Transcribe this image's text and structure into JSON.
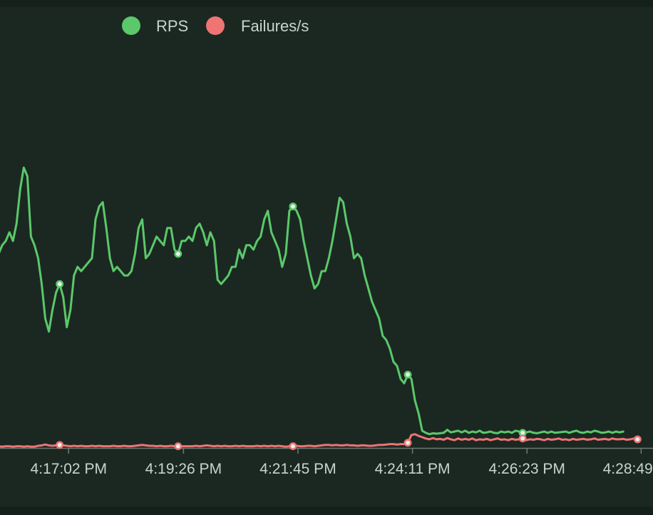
{
  "chart_data": {
    "type": "line",
    "legend": [
      {
        "name": "RPS",
        "color": "#5bc86a"
      },
      {
        "name": "Failures/s",
        "color": "#ef7474"
      }
    ],
    "x_tick_labels": [
      "4:17:02 PM",
      "4:19:26 PM",
      "4:21:45 PM",
      "4:24:11 PM",
      "4:26:23 PM",
      "4:28:49 PM"
    ],
    "axis_color": "#6f7a74",
    "series": [
      {
        "name": "RPS",
        "color": "#5bc86a",
        "marker_indices": [
          19,
          52,
          84,
          116,
          148,
          180
        ],
        "values": [
          40,
          42,
          45,
          47,
          48,
          50,
          48,
          52,
          60,
          65,
          63,
          49,
          47,
          44,
          38,
          30,
          27,
          32,
          36,
          38,
          35,
          28,
          32,
          40,
          42,
          41,
          42,
          43,
          44,
          53,
          56,
          57,
          51,
          44,
          41,
          42,
          41,
          40,
          40,
          41,
          45,
          51,
          53,
          44,
          45,
          47,
          49,
          48,
          47,
          51,
          51,
          46,
          45,
          48,
          48,
          49,
          48,
          51,
          52,
          50,
          47,
          50,
          48,
          39,
          38,
          39,
          40,
          42,
          42,
          46,
          44,
          47,
          47,
          46,
          48,
          49,
          53,
          55,
          50,
          48,
          46,
          42,
          45,
          55,
          56,
          55,
          53,
          48,
          44,
          40,
          37,
          38,
          41,
          41,
          44,
          48,
          53,
          58,
          57,
          52,
          49,
          44,
          45,
          44,
          40,
          37,
          34,
          32,
          30,
          26,
          25,
          23,
          20,
          19,
          16,
          15,
          17,
          16,
          11,
          8,
          4,
          3.5,
          3.2,
          3.4,
          3.3,
          3.4,
          3.5,
          4.2,
          3.6,
          3.8,
          4,
          3.6,
          4,
          3.5,
          3.8,
          3.6,
          4,
          3.5,
          3.6,
          3.8,
          3.5,
          3.4,
          3.8,
          3.6,
          3.8,
          3.5,
          4,
          3.8,
          3.5,
          3.6,
          3.8,
          3.5,
          3.4,
          3.6,
          3.8,
          3.5,
          3.8,
          3.5,
          3.6,
          3.7,
          3.8,
          3.5,
          3.8,
          4,
          3.6,
          3.5,
          3.8,
          3.6,
          4,
          3.8,
          3.5,
          3.6,
          3.8,
          3.5,
          3.8,
          3.6,
          3.8
        ]
      },
      {
        "name": "Failures/s",
        "color": "#ef7474",
        "marker_indices": [
          19,
          52,
          84,
          116,
          148,
          180
        ],
        "values": [
          0.4,
          0.5,
          0.4,
          0.3,
          0.4,
          0.4,
          0.3,
          0.4,
          0.4,
          0.3,
          0.4,
          0.3,
          0.3,
          0.5,
          0.6,
          0.8,
          0.6,
          0.5,
          0.6,
          0.7,
          0.6,
          0.5,
          0.4,
          0.5,
          0.4,
          0.5,
          0.4,
          0.4,
          0.5,
          0.4,
          0.5,
          0.4,
          0.4,
          0.4,
          0.5,
          0.4,
          0.4,
          0.5,
          0.4,
          0.4,
          0.5,
          0.6,
          0.7,
          0.6,
          0.5,
          0.5,
          0.4,
          0.5,
          0.4,
          0.4,
          0.5,
          0.4,
          0.4,
          0.4,
          0.4,
          0.4,
          0.4,
          0.5,
          0.4,
          0.5,
          0.6,
          0.5,
          0.4,
          0.5,
          0.4,
          0.5,
          0.4,
          0.4,
          0.5,
          0.4,
          0.5,
          0.4,
          0.4,
          0.4,
          0.5,
          0.4,
          0.5,
          0.4,
          0.5,
          0.4,
          0.5,
          0.4,
          0.3,
          0.4,
          0.4,
          0.5,
          0.4,
          0.4,
          0.5,
          0.5,
          0.4,
          0.5,
          0.6,
          0.7,
          0.7,
          0.6,
          0.7,
          0.6,
          0.6,
          0.7,
          0.6,
          0.6,
          0.5,
          0.6,
          0.6,
          0.5,
          0.5,
          0.6,
          0.7,
          0.7,
          0.8,
          0.9,
          0.9,
          0.8,
          0.9,
          0.9,
          1.2,
          3.0,
          3.2,
          2.8,
          2.5,
          2.2,
          2.0,
          2.3,
          2.0,
          2.1,
          1.9,
          2.3,
          2.0,
          1.8,
          2.2,
          1.9,
          2.1,
          1.9,
          2.2,
          1.8,
          2.0,
          1.9,
          2.1,
          1.8,
          2.0,
          2.2,
          1.9,
          2.0,
          1.8,
          2.1,
          1.9,
          2.0,
          2.2,
          1.8,
          2.0,
          1.9,
          2.1,
          2.0,
          1.8,
          2.1,
          1.9,
          2.0,
          2.2,
          1.9,
          2.0,
          1.8,
          2.1,
          1.9,
          2.0,
          2.1,
          1.9,
          2.0,
          2.2,
          1.9,
          2.0,
          2.1,
          1.9,
          2.2,
          2.0,
          2.0,
          2.1,
          1.9,
          2.0,
          2.2,
          2.0
        ]
      }
    ]
  }
}
